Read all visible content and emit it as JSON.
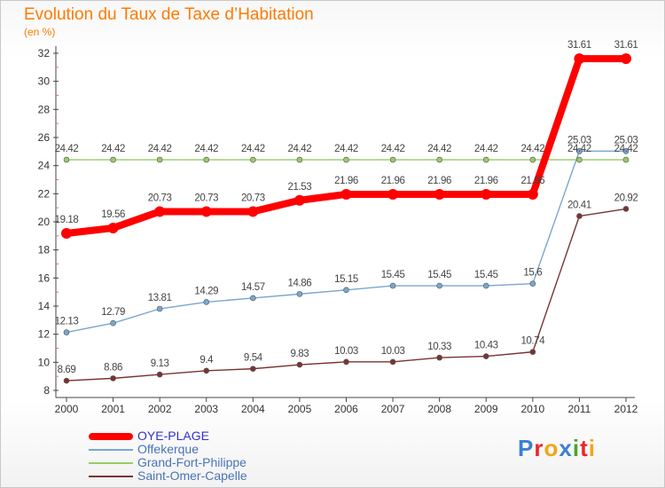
{
  "header": {
    "title": "Evolution du Taux de Taxe d’Habitation",
    "unit": "(en %)"
  },
  "logo": {
    "letters": [
      "P",
      "r",
      "o",
      "x",
      "i",
      "t",
      "i"
    ],
    "colors": [
      "#3b7fd4",
      "#e8262a",
      "#f2a516",
      "#3b7fd4",
      "#4aa32b",
      "#e8262a",
      "#f2a516"
    ]
  },
  "chart_data": {
    "type": "line",
    "title": "Evolution du Taux de Taxe d’Habitation",
    "ylabel": "(en %)",
    "xlabel": "",
    "x": [
      "2000",
      "2001",
      "2002",
      "2003",
      "2004",
      "2005",
      "2006",
      "2007",
      "2008",
      "2009",
      "2010",
      "2011",
      "2012"
    ],
    "ylim": [
      8,
      32
    ],
    "yticks": [
      8,
      10,
      12,
      14,
      16,
      18,
      20,
      22,
      24,
      26,
      28,
      30,
      32
    ],
    "grid": false,
    "legend": "bottom-left",
    "series": [
      {
        "name": "OYE-PLAGE",
        "color": "#ff0000",
        "text_color": "#3333cc",
        "highlight": true,
        "values": [
          19.18,
          19.56,
          20.73,
          20.73,
          20.73,
          21.53,
          21.96,
          21.96,
          21.96,
          21.96,
          21.96,
          31.61,
          31.61
        ],
        "labels": [
          "19.18",
          "19.56",
          "20.73",
          "20.73",
          "20.73",
          "21.53",
          "21.96",
          "21.96",
          "21.96",
          "21.96",
          "21.96",
          "31.61",
          "31.61"
        ]
      },
      {
        "name": "Offekerque",
        "color": "#7aa6cf",
        "text_color": "#4a74b8",
        "highlight": false,
        "values": [
          12.13,
          12.79,
          13.81,
          14.29,
          14.57,
          14.86,
          15.15,
          15.45,
          15.45,
          15.45,
          15.6,
          25.03,
          25.03
        ],
        "labels": [
          "12.13",
          "12.79",
          "13.81",
          "14.29",
          "14.57",
          "14.86",
          "15.15",
          "15.45",
          "15.45",
          "15.45",
          "15.6",
          "25.03",
          "25.03"
        ]
      },
      {
        "name": "Grand-Fort-Philippe",
        "color": "#99cc66",
        "text_color": "#4a74b8",
        "highlight": false,
        "values": [
          24.42,
          24.42,
          24.42,
          24.42,
          24.42,
          24.42,
          24.42,
          24.42,
          24.42,
          24.42,
          24.42,
          24.42,
          24.42
        ],
        "labels": [
          "24.42",
          "24.42",
          "24.42",
          "24.42",
          "24.42",
          "24.42",
          "24.42",
          "24.42",
          "24.42",
          "24.42",
          "24.42",
          "24.42",
          "24.42"
        ]
      },
      {
        "name": "Saint-Omer-Capelle",
        "color": "#7a3333",
        "text_color": "#4a74b8",
        "highlight": false,
        "values": [
          8.69,
          8.86,
          9.13,
          9.4,
          9.54,
          9.83,
          10.03,
          10.03,
          10.33,
          10.43,
          10.74,
          20.41,
          20.92
        ],
        "labels": [
          "8.69",
          "8.86",
          "9.13",
          "9.4",
          "9.54",
          "9.83",
          "10.03",
          "10.03",
          "10.33",
          "10.43",
          "10.74",
          "20.41",
          "20.92"
        ]
      }
    ]
  }
}
